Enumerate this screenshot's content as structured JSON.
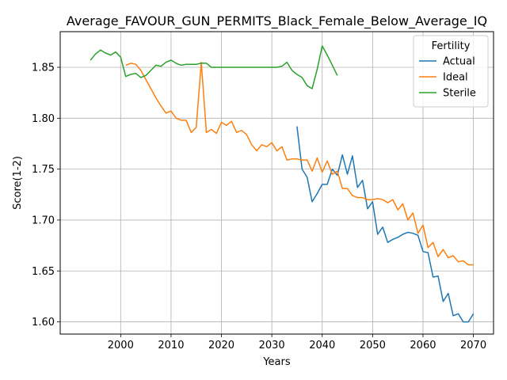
{
  "chart_data": {
    "type": "line",
    "title": "Average_FAVOUR_GUN_PERMITS_Black_Female_Below_Average_IQ",
    "xlabel": "Years",
    "ylabel": "Score(1-2)",
    "xlim": [
      1988,
      2074
    ],
    "ylim": [
      1.588,
      1.885
    ],
    "x_ticks": [
      2000,
      2010,
      2020,
      2030,
      2040,
      2050,
      2060,
      2070
    ],
    "x_tick_labels": [
      "2000",
      "2010",
      "2020",
      "2030",
      "2040",
      "2050",
      "2060",
      "2070"
    ],
    "y_ticks": [
      1.6,
      1.65,
      1.7,
      1.75,
      1.8,
      1.85
    ],
    "y_tick_labels": [
      "1.60",
      "1.65",
      "1.70",
      "1.75",
      "1.80",
      "1.85"
    ],
    "grid": true,
    "legend": {
      "title": "Fertility",
      "position": "top-right"
    },
    "series": [
      {
        "name": "Actual",
        "color": "#1f77b4",
        "x": [
          2035,
          2036,
          2037,
          2038,
          2039,
          2040,
          2041,
          2042,
          2043,
          2044,
          2045,
          2046,
          2047,
          2048,
          2049,
          2050,
          2051,
          2052,
          2053,
          2054,
          2055,
          2056,
          2057,
          2058,
          2059,
          2060,
          2061,
          2062,
          2063,
          2064,
          2065,
          2066,
          2067,
          2068,
          2069,
          2070
        ],
        "y": [
          1.792,
          1.75,
          1.742,
          1.718,
          1.726,
          1.735,
          1.735,
          1.75,
          1.744,
          1.764,
          1.745,
          1.763,
          1.732,
          1.739,
          1.711,
          1.718,
          1.686,
          1.693,
          1.678,
          1.681,
          1.683,
          1.686,
          1.688,
          1.687,
          1.685,
          1.669,
          1.668,
          1.644,
          1.645,
          1.62,
          1.628,
          1.606,
          1.608,
          1.6,
          1.6,
          1.608
        ]
      },
      {
        "name": "Ideal",
        "color": "#ff7f0e",
        "x": [
          2001,
          2002,
          2003,
          2004,
          2005,
          2006,
          2007,
          2008,
          2009,
          2010,
          2011,
          2012,
          2013,
          2014,
          2015,
          2016,
          2017,
          2018,
          2019,
          2020,
          2021,
          2022,
          2023,
          2024,
          2025,
          2026,
          2027,
          2028,
          2029,
          2030,
          2031,
          2032,
          2033,
          2034,
          2035,
          2036,
          2037,
          2038,
          2039,
          2040,
          2041,
          2042,
          2043,
          2044,
          2045,
          2046,
          2047,
          2048,
          2049,
          2050,
          2051,
          2052,
          2053,
          2054,
          2055,
          2056,
          2057,
          2058,
          2059,
          2060,
          2061,
          2062,
          2063,
          2064,
          2065,
          2066,
          2067,
          2068,
          2069,
          2070
        ],
        "y": [
          1.852,
          1.854,
          1.853,
          1.847,
          1.838,
          1.829,
          1.82,
          1.812,
          1.805,
          1.807,
          1.8,
          1.798,
          1.798,
          1.786,
          1.791,
          1.855,
          1.786,
          1.789,
          1.785,
          1.796,
          1.793,
          1.797,
          1.786,
          1.788,
          1.784,
          1.774,
          1.768,
          1.774,
          1.772,
          1.776,
          1.768,
          1.772,
          1.759,
          1.76,
          1.76,
          1.759,
          1.759,
          1.748,
          1.761,
          1.747,
          1.758,
          1.745,
          1.748,
          1.731,
          1.731,
          1.724,
          1.722,
          1.722,
          1.72,
          1.72,
          1.721,
          1.72,
          1.717,
          1.72,
          1.71,
          1.716,
          1.7,
          1.707,
          1.687,
          1.695,
          1.673,
          1.678,
          1.664,
          1.671,
          1.663,
          1.665,
          1.659,
          1.66,
          1.656,
          1.656
        ]
      },
      {
        "name": "Sterile",
        "color": "#2ca02c",
        "x": [
          1994,
          1995,
          1996,
          1997,
          1998,
          1999,
          2000,
          2001,
          2002,
          2003,
          2004,
          2005,
          2006,
          2007,
          2008,
          2009,
          2010,
          2011,
          2012,
          2013,
          2014,
          2015,
          2016,
          2017,
          2018,
          2019,
          2020,
          2021,
          2022,
          2023,
          2024,
          2025,
          2026,
          2027,
          2028,
          2029,
          2030,
          2031,
          2032,
          2033,
          2034,
          2035,
          2036,
          2037,
          2038,
          2039,
          2040,
          2041,
          2042,
          2043
        ],
        "y": [
          1.857,
          1.863,
          1.867,
          1.864,
          1.862,
          1.865,
          1.86,
          1.841,
          1.843,
          1.844,
          1.84,
          1.842,
          1.847,
          1.852,
          1.851,
          1.855,
          1.857,
          1.854,
          1.852,
          1.853,
          1.853,
          1.853,
          1.854,
          1.854,
          1.85,
          1.85,
          1.85,
          1.85,
          1.85,
          1.85,
          1.85,
          1.85,
          1.85,
          1.85,
          1.85,
          1.85,
          1.85,
          1.85,
          1.851,
          1.855,
          1.847,
          1.843,
          1.84,
          1.832,
          1.829,
          1.848,
          1.871,
          1.862,
          1.852,
          1.842
        ]
      }
    ]
  }
}
